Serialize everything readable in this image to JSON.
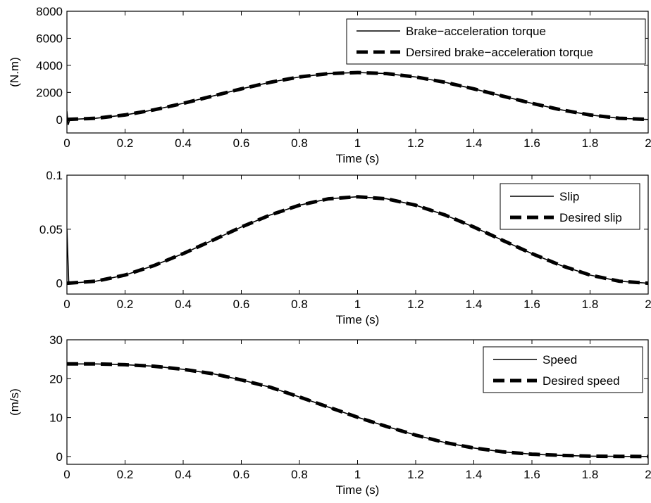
{
  "chart_data": [
    {
      "type": "line",
      "xlabel": "Time (s)",
      "ylabel": "(N.m)",
      "xlim": [
        0,
        2
      ],
      "ylim": [
        -1000,
        8000
      ],
      "xticks": [
        "0",
        "0.2",
        "0.4",
        "0.6",
        "0.8",
        "1",
        "1.2",
        "1.4",
        "1.6",
        "1.8",
        "2"
      ],
      "yticks": [
        "0",
        "2000",
        "4000",
        "6000",
        "8000"
      ],
      "legend_position": "top-right",
      "series": [
        {
          "name": "Brake−acceleration torque",
          "style": "solid",
          "x": [
            0,
            0.004,
            0.01,
            0.1,
            0.2,
            0.3,
            0.4,
            0.5,
            0.6,
            0.7,
            0.8,
            0.9,
            1.0,
            1.1,
            1.2,
            1.3,
            1.4,
            1.5,
            1.6,
            1.7,
            1.8,
            1.9,
            2.0
          ],
          "y": [
            600,
            -400,
            0,
            85,
            330,
            710,
            1190,
            1720,
            2260,
            2750,
            3140,
            3390,
            3470,
            3390,
            3140,
            2750,
            2260,
            1720,
            1190,
            710,
            330,
            85,
            0
          ]
        },
        {
          "name": "Dersired brake−acceleration torque",
          "style": "dashed",
          "x": [
            0,
            0.1,
            0.2,
            0.3,
            0.4,
            0.5,
            0.6,
            0.7,
            0.8,
            0.9,
            1.0,
            1.1,
            1.2,
            1.3,
            1.4,
            1.5,
            1.6,
            1.7,
            1.8,
            1.9,
            2.0
          ],
          "y": [
            0,
            85,
            330,
            710,
            1190,
            1720,
            2260,
            2750,
            3140,
            3390,
            3470,
            3390,
            3140,
            2750,
            2260,
            1720,
            1190,
            710,
            330,
            85,
            0
          ]
        }
      ]
    },
    {
      "type": "line",
      "xlabel": "Time (s)",
      "ylabel": "",
      "xlim": [
        0,
        2
      ],
      "ylim": [
        -0.01,
        0.1
      ],
      "xticks": [
        "0",
        "0.2",
        "0.4",
        "0.6",
        "0.8",
        "1",
        "1.2",
        "1.4",
        "1.6",
        "1.8",
        "2"
      ],
      "yticks": [
        "0",
        "0.05",
        "0.1"
      ],
      "legend_position": "top-right",
      "series": [
        {
          "name": "Slip",
          "style": "solid",
          "x": [
            0,
            0.006,
            0.012,
            0.1,
            0.2,
            0.3,
            0.4,
            0.5,
            0.6,
            0.7,
            0.8,
            0.9,
            1.0,
            1.1,
            1.2,
            1.3,
            1.4,
            1.5,
            1.6,
            1.7,
            1.8,
            1.9,
            2.0
          ],
          "y": [
            0.05,
            0.002,
            0.0,
            0.0019,
            0.0076,
            0.0164,
            0.0274,
            0.0396,
            0.052,
            0.0632,
            0.0722,
            0.0781,
            0.08,
            0.0781,
            0.0722,
            0.0632,
            0.052,
            0.0396,
            0.0274,
            0.0164,
            0.0076,
            0.0019,
            0.0
          ]
        },
        {
          "name": "Desired slip",
          "style": "dashed",
          "x": [
            0,
            0.1,
            0.2,
            0.3,
            0.4,
            0.5,
            0.6,
            0.7,
            0.8,
            0.9,
            1.0,
            1.1,
            1.2,
            1.3,
            1.4,
            1.5,
            1.6,
            1.7,
            1.8,
            1.9,
            2.0
          ],
          "y": [
            0.0,
            0.0019,
            0.0076,
            0.0164,
            0.0274,
            0.0396,
            0.052,
            0.0632,
            0.0722,
            0.0781,
            0.08,
            0.0781,
            0.0722,
            0.0632,
            0.052,
            0.0396,
            0.0274,
            0.0164,
            0.0076,
            0.0019,
            0.0
          ]
        }
      ]
    },
    {
      "type": "line",
      "xlabel": "Time (s)",
      "ylabel": "(m/s)",
      "xlim": [
        0,
        2
      ],
      "ylim": [
        -2,
        30
      ],
      "xticks": [
        "0",
        "0.2",
        "0.4",
        "0.6",
        "0.8",
        "1",
        "1.2",
        "1.4",
        "1.6",
        "1.8",
        "2"
      ],
      "yticks": [
        "0",
        "10",
        "20",
        "30"
      ],
      "legend_position": "top-right",
      "series": [
        {
          "name": "Speed",
          "style": "solid",
          "x": [
            0,
            0.1,
            0.2,
            0.3,
            0.4,
            0.5,
            0.6,
            0.7,
            0.8,
            0.9,
            1.0,
            1.1,
            1.2,
            1.3,
            1.4,
            1.5,
            1.6,
            1.7,
            1.8,
            1.9,
            2.0
          ],
          "y": [
            23.8,
            23.8,
            23.6,
            23.2,
            22.4,
            21.3,
            19.7,
            17.8,
            15.3,
            12.7,
            10.1,
            7.7,
            5.5,
            3.6,
            2.2,
            1.2,
            0.6,
            0.3,
            0.1,
            0.05,
            0.0
          ]
        },
        {
          "name": "Desired speed",
          "style": "dashed",
          "x": [
            0,
            0.1,
            0.2,
            0.3,
            0.4,
            0.5,
            0.6,
            0.7,
            0.8,
            0.9,
            1.0,
            1.1,
            1.2,
            1.3,
            1.4,
            1.5,
            1.6,
            1.7,
            1.8,
            1.9,
            2.0
          ],
          "y": [
            23.8,
            23.8,
            23.6,
            23.2,
            22.4,
            21.3,
            19.7,
            17.8,
            15.3,
            12.7,
            10.1,
            7.7,
            5.5,
            3.6,
            2.2,
            1.2,
            0.6,
            0.3,
            0.1,
            0.05,
            0.0
          ]
        }
      ]
    }
  ]
}
